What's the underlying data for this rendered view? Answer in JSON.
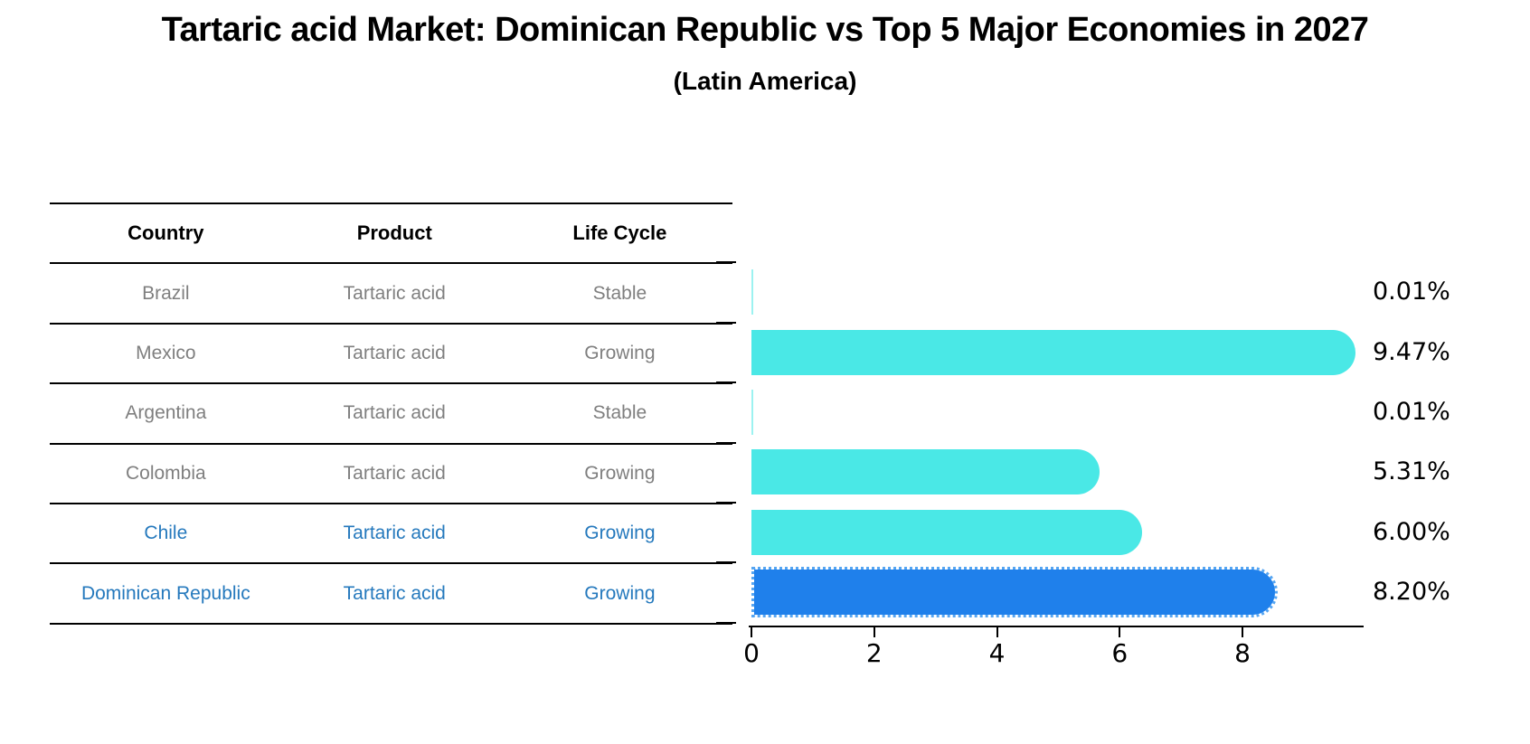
{
  "title": "Tartaric acid Market: Dominican Republic vs Top 5 Major Economies in 2027",
  "subtitle": "(Latin America)",
  "table": {
    "headers": [
      "Country",
      "Product",
      "Life Cycle"
    ],
    "rows": [
      {
        "country": "Brazil",
        "product": "Tartaric acid",
        "life_cycle": "Stable",
        "highlight": false
      },
      {
        "country": "Mexico",
        "product": "Tartaric acid",
        "life_cycle": "Growing",
        "highlight": false
      },
      {
        "country": "Argentina",
        "product": "Tartaric acid",
        "life_cycle": "Stable",
        "highlight": false
      },
      {
        "country": "Colombia",
        "product": "Tartaric acid",
        "life_cycle": "Growing",
        "highlight": false
      },
      {
        "country": "Chile",
        "product": "Tartaric acid",
        "life_cycle": "Growing",
        "highlight": true
      },
      {
        "country": "Dominican Republic",
        "product": "Tartaric acid",
        "life_cycle": "Growing",
        "highlight": true
      }
    ]
  },
  "chart_data": {
    "type": "bar",
    "orientation": "horizontal",
    "title": "Tartaric acid Market: Dominican Republic vs Top 5 Major Economies in 2027 (Latin America)",
    "categories": [
      "Brazil",
      "Mexico",
      "Argentina",
      "Colombia",
      "Chile",
      "Dominican Republic"
    ],
    "values": [
      0.01,
      9.47,
      0.01,
      5.31,
      6.0,
      8.2
    ],
    "labels": [
      "0.01%",
      "9.47%",
      "0.01%",
      "5.31%",
      "6.00%",
      "8.20%"
    ],
    "x_ticks": [
      0,
      2,
      4,
      6,
      8
    ],
    "xlim": [
      0,
      9.95
    ],
    "grid": false,
    "legend": "none",
    "highlight_index": 5,
    "bar_color": "#4ae8e6",
    "highlight_bar_color": "#1f80eb",
    "highlight_text_color": "#2579bd",
    "row_text_color": "#7f7f7f",
    "axis_color": "#000000"
  }
}
